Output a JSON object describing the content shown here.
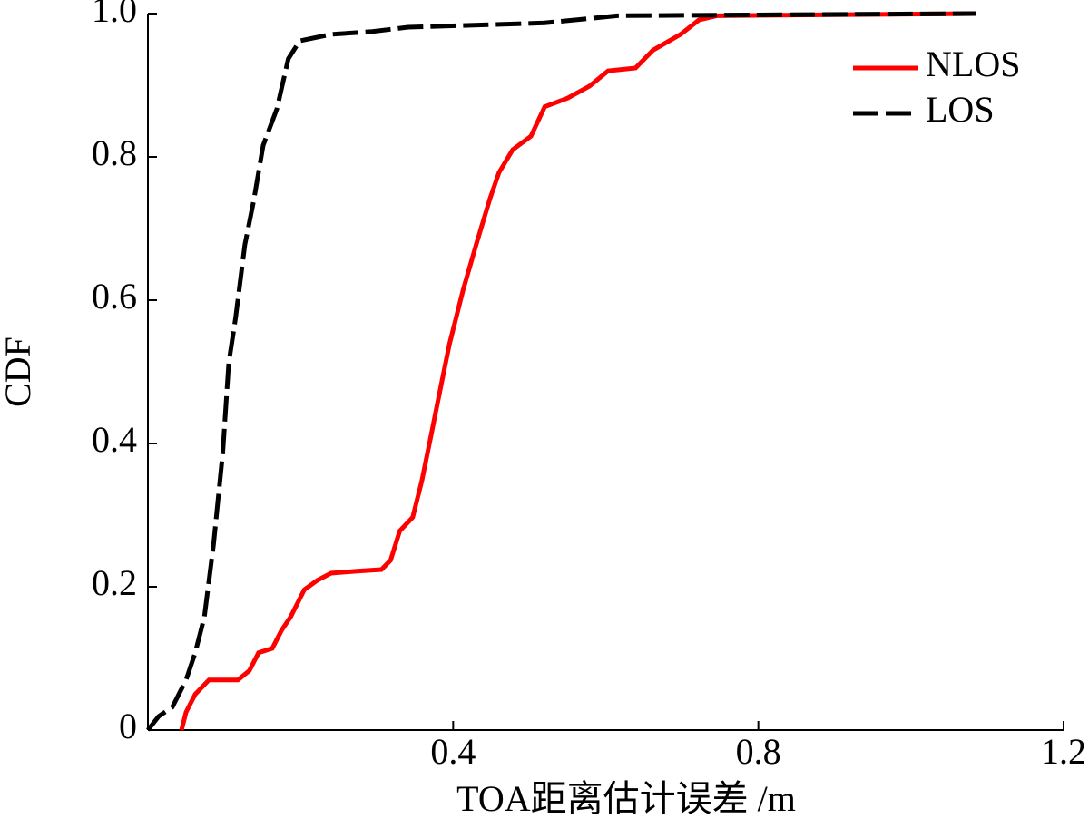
{
  "chart_data": {
    "type": "line",
    "xlabel": "TOA距离估计误差 /m",
    "ylabel": "CDF",
    "xlim": [
      0,
      1.2
    ],
    "ylim": [
      0,
      1
    ],
    "xticks": [
      0.4,
      0.8,
      1.2
    ],
    "yticks": [
      0,
      0.2,
      0.4,
      0.6,
      0.8,
      {
        "value": 1,
        "label": "1.0"
      }
    ],
    "legend": "upper right",
    "series": [
      {
        "name": "NLOS",
        "color": "#ff0000",
        "dash": "solid",
        "x": [
          0.044,
          0.05,
          0.062,
          0.08,
          0.118,
          0.133,
          0.145,
          0.163,
          0.175,
          0.187,
          0.205,
          0.222,
          0.24,
          0.276,
          0.306,
          0.318,
          0.33,
          0.347,
          0.359,
          0.371,
          0.383,
          0.395,
          0.413,
          0.43,
          0.448,
          0.46,
          0.478,
          0.502,
          0.52,
          0.55,
          0.579,
          0.603,
          0.639,
          0.662,
          0.698,
          0.722,
          0.746,
          1.085
        ],
        "values": [
          0,
          0.025,
          0.05,
          0.07,
          0.07,
          0.083,
          0.108,
          0.114,
          0.139,
          0.158,
          0.196,
          0.209,
          0.219,
          0.222,
          0.224,
          0.237,
          0.278,
          0.297,
          0.348,
          0.411,
          0.475,
          0.538,
          0.614,
          0.677,
          0.741,
          0.778,
          0.81,
          0.829,
          0.87,
          0.882,
          0.899,
          0.92,
          0.924,
          0.949,
          0.971,
          0.991,
          0.997,
          1
        ]
      },
      {
        "name": "LOS",
        "color": "#000000",
        "dash": "dashed",
        "x": [
          0,
          0.014,
          0.032,
          0.05,
          0.062,
          0.074,
          0.086,
          0.098,
          0.106,
          0.115,
          0.127,
          0.139,
          0.151,
          0.169,
          0.184,
          0.199,
          0.24,
          0.294,
          0.341,
          0.52,
          0.615,
          1.085
        ],
        "values": [
          0,
          0.019,
          0.032,
          0.07,
          0.108,
          0.158,
          0.259,
          0.386,
          0.513,
          0.576,
          0.677,
          0.741,
          0.816,
          0.867,
          0.937,
          0.962,
          0.971,
          0.975,
          0.981,
          0.987,
          0.997,
          1
        ]
      }
    ]
  }
}
